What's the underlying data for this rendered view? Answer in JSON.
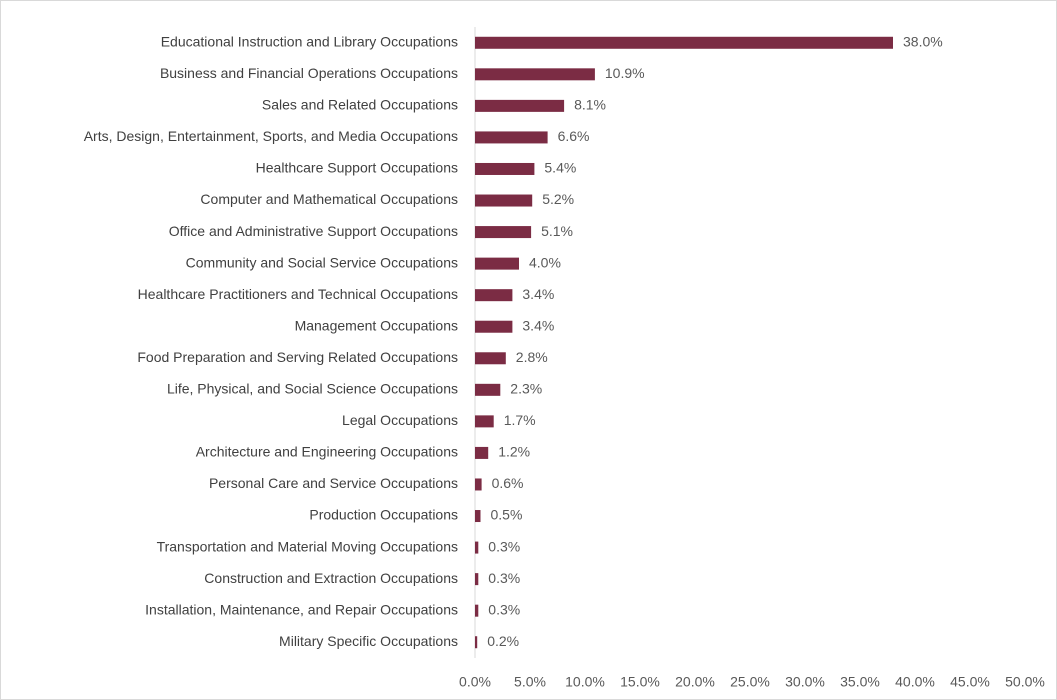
{
  "chart_data": {
    "type": "bar",
    "orientation": "horizontal",
    "categories": [
      "Educational Instruction and Library Occupations",
      "Business and Financial Operations Occupations",
      "Sales and Related Occupations",
      "Arts, Design, Entertainment, Sports, and Media Occupations",
      "Healthcare Support Occupations",
      "Computer and Mathematical Occupations",
      "Office and Administrative Support Occupations",
      "Community and Social Service Occupations",
      "Healthcare Practitioners and Technical Occupations",
      "Management Occupations",
      "Food Preparation and Serving Related Occupations",
      "Life, Physical, and Social Science Occupations",
      "Legal Occupations",
      "Architecture and Engineering Occupations",
      "Personal Care and Service Occupations",
      "Production Occupations",
      "Transportation and Material Moving Occupations",
      "Construction and Extraction Occupations",
      "Installation, Maintenance, and Repair Occupations",
      "Military Specific Occupations"
    ],
    "values": [
      38.0,
      10.9,
      8.1,
      6.6,
      5.4,
      5.2,
      5.1,
      4.0,
      3.4,
      3.4,
      2.8,
      2.3,
      1.7,
      1.2,
      0.6,
      0.5,
      0.3,
      0.3,
      0.3,
      0.2
    ],
    "value_labels": [
      "38.0%",
      "10.9%",
      "8.1%",
      "6.6%",
      "5.4%",
      "5.2%",
      "5.1%",
      "4.0%",
      "3.4%",
      "3.4%",
      "2.8%",
      "2.3%",
      "1.7%",
      "1.2%",
      "0.6%",
      "0.5%",
      "0.3%",
      "0.3%",
      "0.3%",
      "0.2%"
    ],
    "color": "#7b2c44",
    "xlim": [
      0,
      50
    ],
    "xticks": [
      {
        "value": 0,
        "label": "0.0%"
      },
      {
        "value": 5,
        "label": "5.0%"
      },
      {
        "value": 10,
        "label": "10.0%"
      },
      {
        "value": 15,
        "label": "15.0%"
      },
      {
        "value": 20,
        "label": "20.0%"
      },
      {
        "value": 25,
        "label": "25.0%"
      },
      {
        "value": 30,
        "label": "30.0%"
      },
      {
        "value": 35,
        "label": "35.0%"
      },
      {
        "value": 40,
        "label": "40.0%"
      },
      {
        "value": 45,
        "label": "45.0%"
      },
      {
        "value": 50,
        "label": "50.0%"
      }
    ],
    "grid": false
  }
}
